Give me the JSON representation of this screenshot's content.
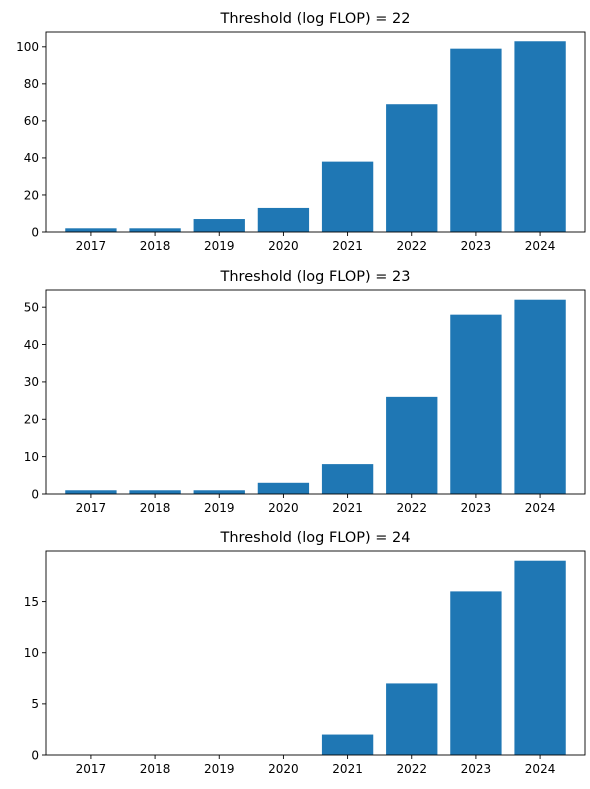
{
  "chart_data": [
    {
      "type": "bar",
      "title": "Threshold (log FLOP) = 22",
      "categories": [
        "2017",
        "2018",
        "2019",
        "2020",
        "2021",
        "2022",
        "2023",
        "2024"
      ],
      "values": [
        2,
        2,
        7,
        13,
        38,
        69,
        99,
        103
      ],
      "ylim": [
        0,
        108
      ],
      "yticks": [
        0,
        20,
        40,
        60,
        80,
        100
      ],
      "color": "#1f77b4",
      "grid": false
    },
    {
      "type": "bar",
      "title": "Threshold (log FLOP) = 23",
      "categories": [
        "2017",
        "2018",
        "2019",
        "2020",
        "2021",
        "2022",
        "2023",
        "2024"
      ],
      "values": [
        1,
        1,
        1,
        3,
        8,
        26,
        48,
        52
      ],
      "ylim": [
        0,
        54.6
      ],
      "yticks": [
        0,
        10,
        20,
        30,
        40,
        50
      ],
      "color": "#1f77b4",
      "grid": false
    },
    {
      "type": "bar",
      "title": "Threshold (log FLOP) = 24",
      "categories": [
        "2017",
        "2018",
        "2019",
        "2020",
        "2021",
        "2022",
        "2023",
        "2024"
      ],
      "values": [
        0,
        0,
        0,
        0,
        2,
        7,
        16,
        19
      ],
      "ylim": [
        0,
        19.95
      ],
      "yticks": [
        0,
        5,
        10,
        15
      ],
      "color": "#1f77b4",
      "grid": false
    }
  ]
}
